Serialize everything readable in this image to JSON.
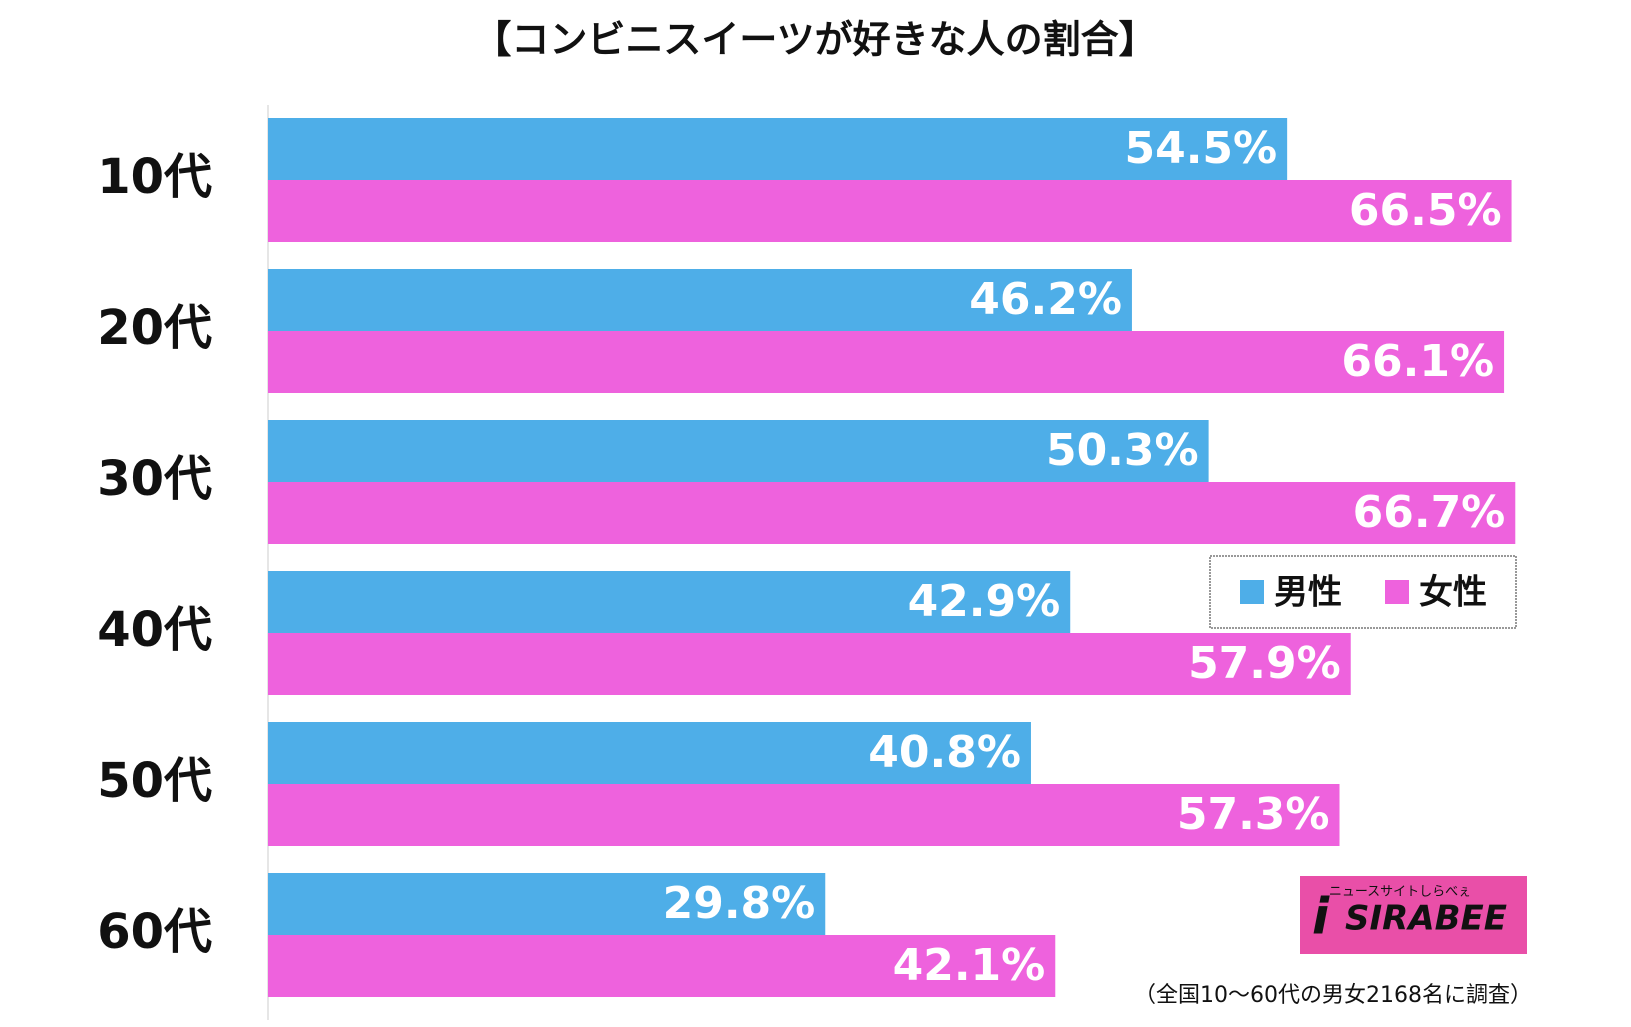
{
  "chart_data": {
    "type": "barh",
    "title": "【コンビニスイーツが好きな人の割合】",
    "categories": [
      "10代",
      "20代",
      "30代",
      "40代",
      "50代",
      "60代"
    ],
    "series": [
      {
        "name": "男性",
        "color": "#4eaee8",
        "values": [
          54.5,
          46.2,
          50.3,
          42.9,
          40.8,
          29.8
        ],
        "value_labels": [
          "54.5%",
          "46.2%",
          "50.3%",
          "42.9%",
          "40.8%",
          "29.8%"
        ]
      },
      {
        "name": "女性",
        "color": "#ee62dd",
        "values": [
          66.5,
          66.1,
          66.7,
          57.9,
          57.3,
          42.1
        ],
        "value_labels": [
          "66.5%",
          "66.1%",
          "66.7%",
          "57.9%",
          "57.3%",
          "42.1%"
        ]
      }
    ],
    "xlim": [
      0,
      70
    ],
    "legend": "right",
    "note": "（全国10〜60代の男女2168名に調査）",
    "logo": {
      "name": "SIRABEE",
      "tagline": "ニュースサイトしらべぇ"
    }
  }
}
